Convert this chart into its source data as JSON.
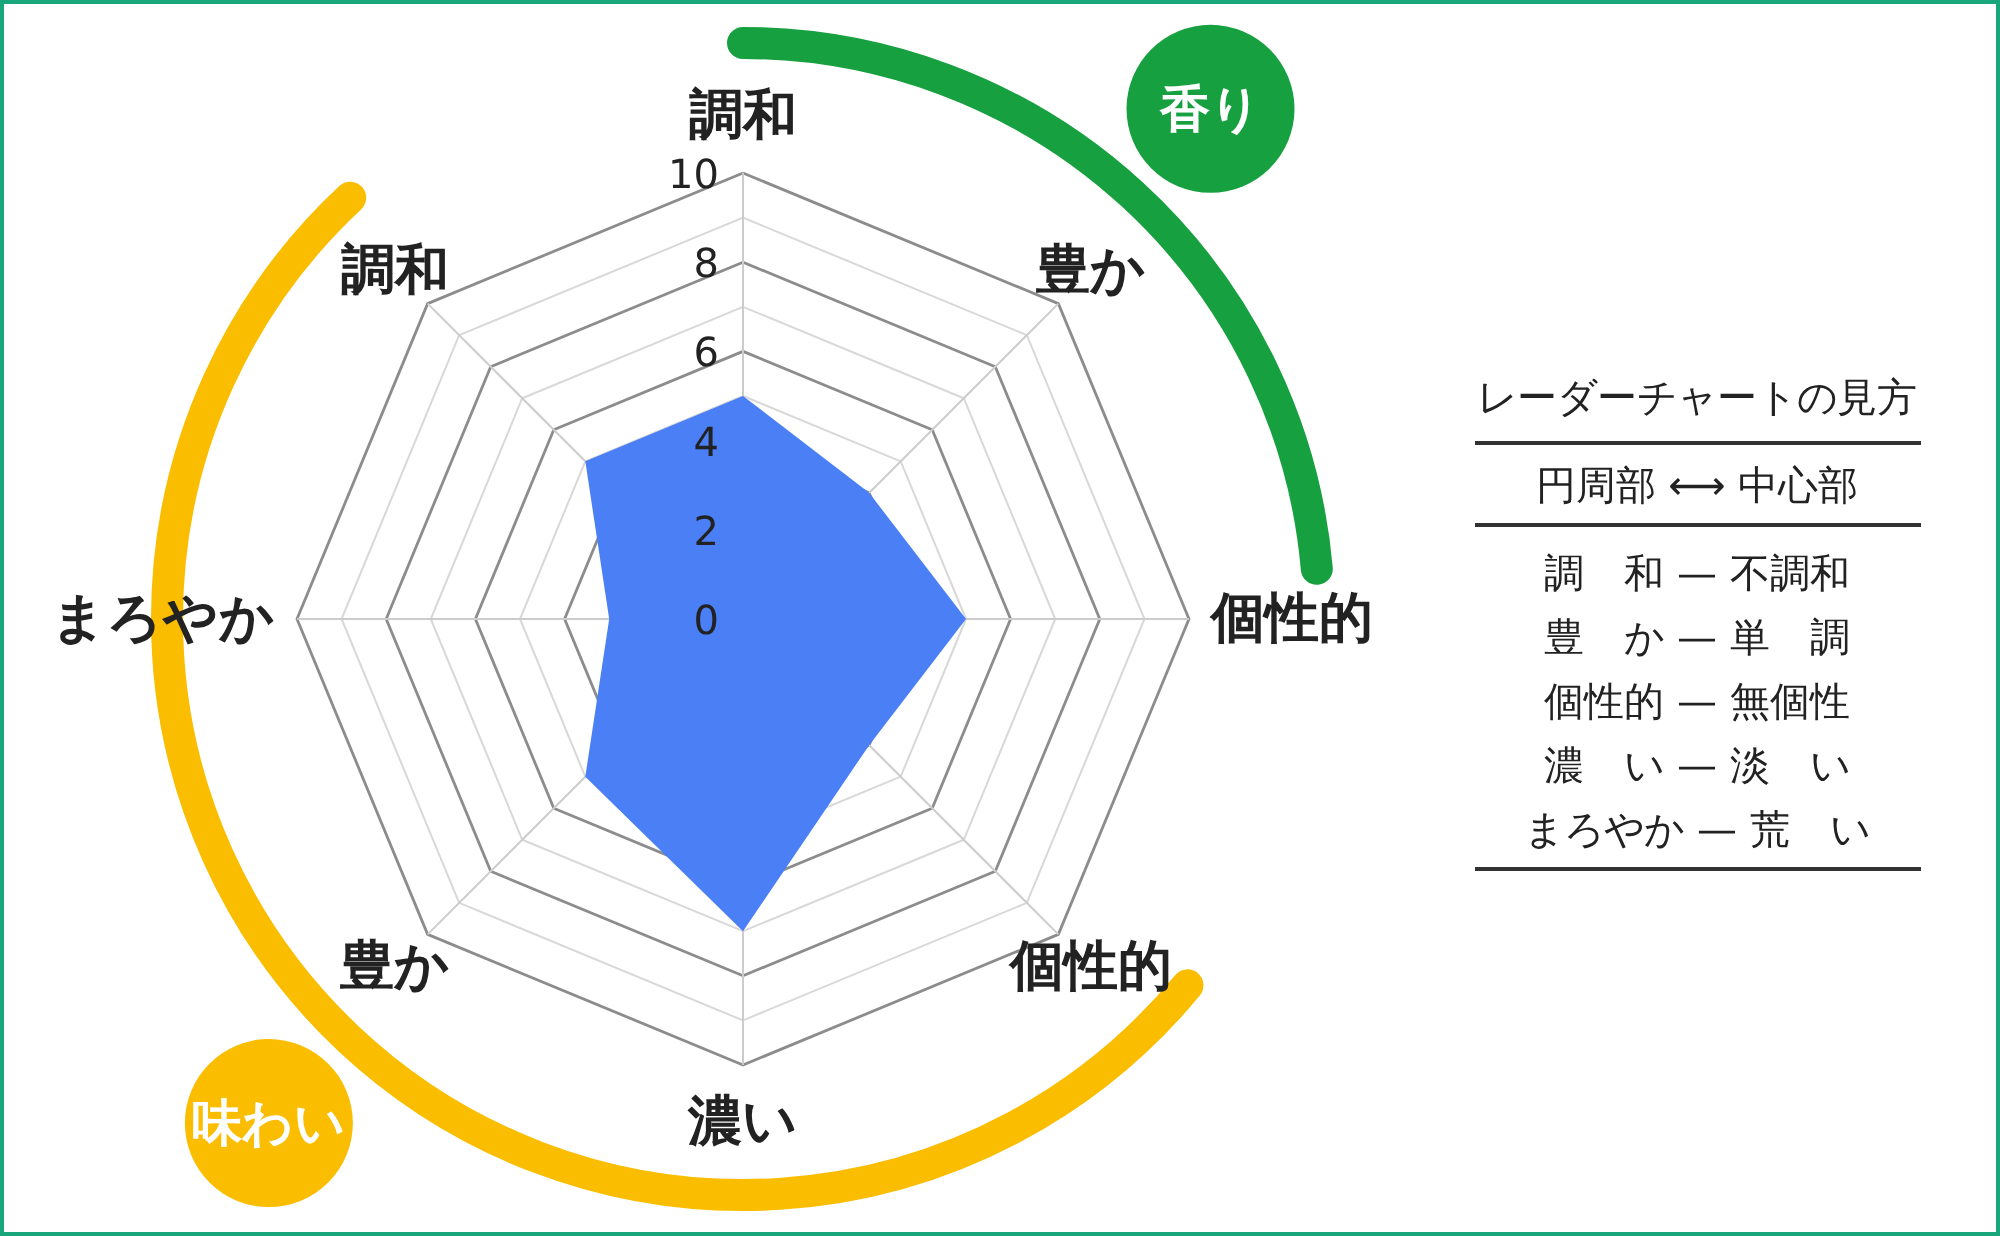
{
  "chart_data": {
    "type": "radar",
    "categories": [
      "調和",
      "豊か",
      "個性的",
      "個性的",
      "濃い",
      "豊か",
      "まろやか",
      "調和"
    ],
    "series": [
      {
        "color": "#4a7ff5",
        "values": [
          5,
          4,
          5,
          4,
          7,
          5,
          3,
          5
        ]
      }
    ],
    "ylim": [
      0,
      10
    ],
    "yticks": [
      0,
      2,
      4,
      6,
      8,
      10
    ],
    "grid": true,
    "annotations": [
      "香り",
      "味わい",
      "レーダーチャートの見方",
      "円周部 ⟷ 中心部",
      "調　和 — 不調和",
      "豊　か — 単　調",
      "個性的 — 無個性",
      "濃　い — 淡　い",
      "まろやか — 荒　い"
    ]
  }
}
